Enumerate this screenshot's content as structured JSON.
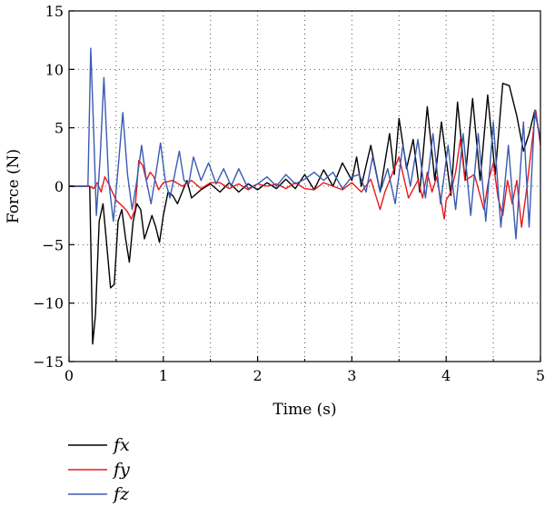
{
  "chart_data": {
    "type": "line",
    "xlabel": "Time (s)",
    "ylabel": "Force (N)",
    "xlim": [
      0,
      5
    ],
    "ylim": [
      -15,
      15
    ],
    "xticks": [
      0,
      1,
      2,
      3,
      4,
      5
    ],
    "yticks": [
      -15,
      -10,
      -5,
      0,
      5,
      10,
      15
    ],
    "x_tick_labels": [
      "0",
      "1",
      "2",
      "3",
      "4",
      "5"
    ],
    "y_tick_labels": [
      "−15",
      "−10",
      "−5",
      "0",
      "5",
      "10",
      "15"
    ],
    "grid": "dotted",
    "legend_position": "bottom-left",
    "series": [
      {
        "name": "fx",
        "color": "#000000",
        "x": [
          0,
          0.22,
          0.25,
          0.28,
          0.32,
          0.36,
          0.4,
          0.44,
          0.48,
          0.52,
          0.56,
          0.6,
          0.64,
          0.68,
          0.72,
          0.76,
          0.8,
          0.84,
          0.88,
          0.92,
          0.96,
          1.0,
          1.05,
          1.1,
          1.15,
          1.2,
          1.25,
          1.3,
          1.4,
          1.5,
          1.6,
          1.7,
          1.8,
          1.9,
          2.0,
          2.1,
          2.2,
          2.3,
          2.4,
          2.5,
          2.6,
          2.7,
          2.8,
          2.9,
          3.0,
          3.05,
          3.1,
          3.2,
          3.3,
          3.4,
          3.45,
          3.5,
          3.58,
          3.65,
          3.72,
          3.8,
          3.88,
          3.95,
          4.05,
          4.12,
          4.2,
          4.28,
          4.36,
          4.44,
          4.52,
          4.6,
          4.67,
          4.75,
          4.82,
          4.88,
          4.94,
          5.0
        ],
        "y": [
          0,
          0,
          -13.5,
          -11,
          -3,
          -1.5,
          -5,
          -8.7,
          -8.4,
          -3,
          -2,
          -4.5,
          -6.5,
          -3,
          -1.5,
          -2,
          -4.5,
          -3.5,
          -2.5,
          -3.5,
          -4.8,
          -2.5,
          -0.5,
          -0.8,
          -1.5,
          -0.5,
          0.5,
          -1,
          -0.3,
          0.2,
          -0.5,
          0.3,
          -0.5,
          0.2,
          -0.3,
          0.3,
          -0.2,
          0.6,
          -0.2,
          1.0,
          -0.3,
          1.4,
          0,
          2.0,
          0.5,
          2.5,
          0,
          3.5,
          -0.5,
          4.5,
          1,
          5.8,
          1.5,
          4.0,
          -0.5,
          6.8,
          0.5,
          5.5,
          -0.8,
          7.2,
          0.5,
          7.5,
          0.5,
          7.8,
          1.0,
          8.8,
          8.6,
          6.0,
          3.0,
          4.5,
          6.5,
          4.0
        ]
      },
      {
        "name": "fy",
        "color": "#e8191b",
        "x": [
          0,
          0.22,
          0.26,
          0.3,
          0.34,
          0.38,
          0.42,
          0.46,
          0.5,
          0.54,
          0.58,
          0.62,
          0.66,
          0.7,
          0.74,
          0.78,
          0.82,
          0.86,
          0.9,
          0.95,
          1.0,
          1.1,
          1.2,
          1.3,
          1.4,
          1.5,
          1.6,
          1.7,
          1.8,
          1.9,
          2.0,
          2.1,
          2.2,
          2.3,
          2.4,
          2.5,
          2.6,
          2.7,
          2.8,
          2.9,
          3.0,
          3.1,
          3.2,
          3.3,
          3.35,
          3.4,
          3.5,
          3.6,
          3.7,
          3.75,
          3.8,
          3.85,
          3.9,
          3.98,
          4.0,
          4.05,
          4.1,
          4.15,
          4.2,
          4.3,
          4.4,
          4.45,
          4.5,
          4.55,
          4.6,
          4.65,
          4.7,
          4.75,
          4.8,
          4.85,
          4.9,
          4.95,
          5.0
        ],
        "y": [
          0,
          0,
          -0.2,
          0.3,
          -0.5,
          0.8,
          0.2,
          -0.5,
          -1.2,
          -1.5,
          -1.8,
          -2.2,
          -2.8,
          -2.0,
          2.2,
          1.8,
          0.5,
          1.2,
          0.8,
          -0.3,
          0.3,
          0.5,
          0,
          0.5,
          -0.2,
          0.3,
          0.3,
          -0.2,
          0.2,
          -0.3,
          0.2,
          0,
          0.2,
          -0.2,
          0.3,
          -0.2,
          -0.3,
          0.3,
          0,
          -0.3,
          0.3,
          -0.5,
          0.6,
          -2.0,
          -0.5,
          0.5,
          2.5,
          -1.0,
          0.5,
          -1.0,
          1.2,
          -0.5,
          0.8,
          -2.8,
          -1.2,
          -0.5,
          1.2,
          4.0,
          0.5,
          1.0,
          -2.0,
          0.5,
          2.0,
          -1.0,
          -2.5,
          0.5,
          -1.5,
          0.5,
          -3.5,
          -0.5,
          3.0,
          6.5,
          3.5
        ]
      },
      {
        "name": "fz",
        "color": "#3a5bb0",
        "x": [
          0,
          0.2,
          0.23,
          0.26,
          0.29,
          0.33,
          0.37,
          0.42,
          0.47,
          0.52,
          0.57,
          0.62,
          0.67,
          0.72,
          0.77,
          0.82,
          0.87,
          0.92,
          0.97,
          1.02,
          1.07,
          1.12,
          1.17,
          1.22,
          1.27,
          1.32,
          1.4,
          1.48,
          1.56,
          1.64,
          1.72,
          1.8,
          1.9,
          2.0,
          2.1,
          2.2,
          2.3,
          2.4,
          2.5,
          2.6,
          2.7,
          2.8,
          2.9,
          3.0,
          3.08,
          3.15,
          3.22,
          3.3,
          3.38,
          3.46,
          3.54,
          3.62,
          3.7,
          3.78,
          3.86,
          3.94,
          4.02,
          4.1,
          4.18,
          4.26,
          4.34,
          4.42,
          4.5,
          4.58,
          4.66,
          4.74,
          4.82,
          4.88,
          4.94,
          5.0
        ],
        "y": [
          0,
          0,
          11.8,
          5.0,
          -2.5,
          2.5,
          9.3,
          0.5,
          -3.0,
          1.5,
          6.3,
          1.0,
          -2.0,
          0.5,
          3.5,
          0.5,
          -1.5,
          1.0,
          3.7,
          0.5,
          -1.0,
          1.0,
          3.0,
          0.5,
          0.2,
          2.5,
          0.5,
          2.0,
          0.2,
          1.5,
          0,
          1.5,
          -0.2,
          0.2,
          0.8,
          0,
          1.0,
          0.2,
          0.6,
          1.2,
          0.5,
          1.2,
          -0.2,
          0.8,
          1.0,
          -0.5,
          2.5,
          -0.5,
          1.5,
          -1.5,
          3.5,
          0,
          4.0,
          -1.0,
          4.5,
          -1.5,
          3.5,
          -2.0,
          4.5,
          -2.5,
          4.5,
          -3.0,
          5.5,
          -3.5,
          3.5,
          -4.5,
          5.5,
          -3.5,
          6.5,
          4.0
        ]
      }
    ]
  }
}
